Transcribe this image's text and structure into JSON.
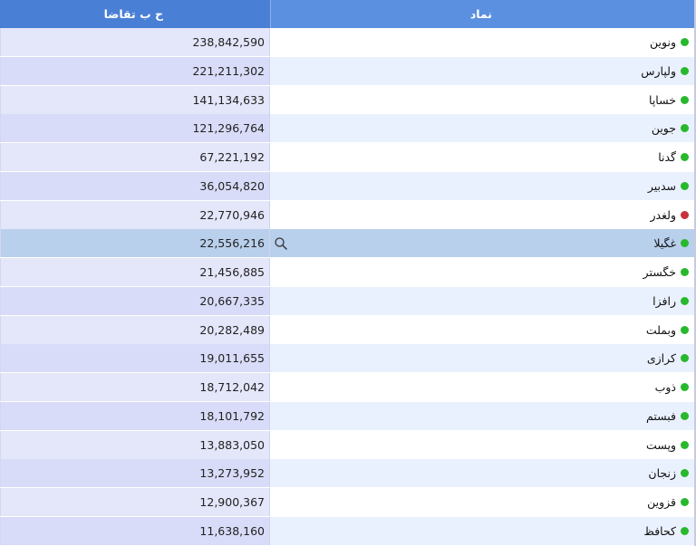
{
  "columns": {
    "symbol": "نماد",
    "value": "ح ب تقاضا"
  },
  "colors": {
    "header": "#5b8fe0",
    "positive": "#27b82d",
    "negative": "#c8323a",
    "selected": "#b9d0ec"
  },
  "rows": [
    {
      "symbol": "ونوین",
      "value": "238,842,590",
      "status": "green"
    },
    {
      "symbol": "ولپارس",
      "value": "221,211,302",
      "status": "green"
    },
    {
      "symbol": "خساپا",
      "value": "141,134,633",
      "status": "green"
    },
    {
      "symbol": "جوین",
      "value": "121,296,764",
      "status": "green"
    },
    {
      "symbol": "گدنا",
      "value": "67,221,192",
      "status": "green"
    },
    {
      "symbol": "سدبیر",
      "value": "36,054,820",
      "status": "green"
    },
    {
      "symbol": "ولغدر",
      "value": "22,770,946",
      "status": "red"
    },
    {
      "symbol": "غگیلا",
      "value": "22,556,216",
      "status": "green",
      "selected": true
    },
    {
      "symbol": "خگستر",
      "value": "21,456,885",
      "status": "green"
    },
    {
      "symbol": "رافزا",
      "value": "20,667,335",
      "status": "green"
    },
    {
      "symbol": "وبملت",
      "value": "20,282,489",
      "status": "green"
    },
    {
      "symbol": "کرازی",
      "value": "19,011,655",
      "status": "green"
    },
    {
      "symbol": "ذوب",
      "value": "18,712,042",
      "status": "green"
    },
    {
      "symbol": "فبستم",
      "value": "18,101,792",
      "status": "green"
    },
    {
      "symbol": "وپست",
      "value": "13,883,050",
      "status": "green"
    },
    {
      "symbol": "زنجان",
      "value": "13,273,952",
      "status": "green"
    },
    {
      "symbol": "قزوین",
      "value": "12,900,367",
      "status": "green"
    },
    {
      "symbol": "کحافظ",
      "value": "11,638,160",
      "status": "green"
    }
  ]
}
